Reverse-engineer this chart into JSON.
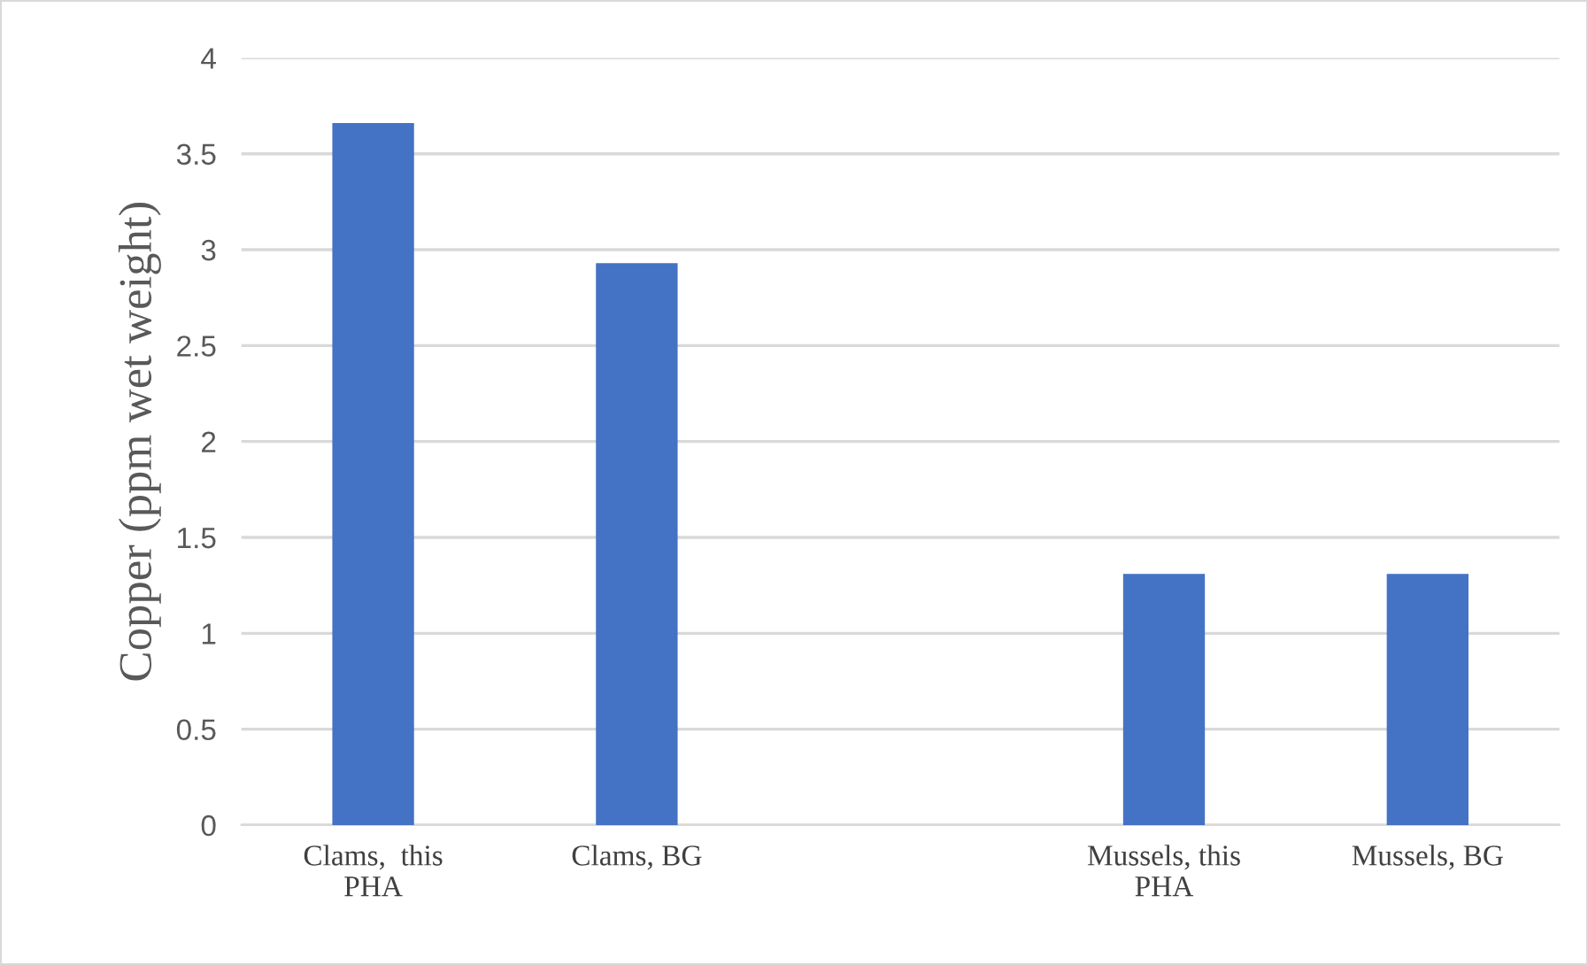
{
  "chart_data": {
    "type": "bar",
    "ylabel": "Copper (ppm wet weight)",
    "categories": [
      "Clams,  this\nPHA",
      "Clams, BG",
      null,
      "Mussels, this\nPHA",
      "Mussels, BG"
    ],
    "values": [
      3.66,
      2.93,
      null,
      1.31,
      1.31
    ],
    "color": "#4472c4",
    "ylim": [
      0,
      4
    ],
    "yticks": [
      0,
      0.5,
      1,
      1.5,
      2,
      2.5,
      3,
      3.5,
      4
    ],
    "grid": "y"
  }
}
